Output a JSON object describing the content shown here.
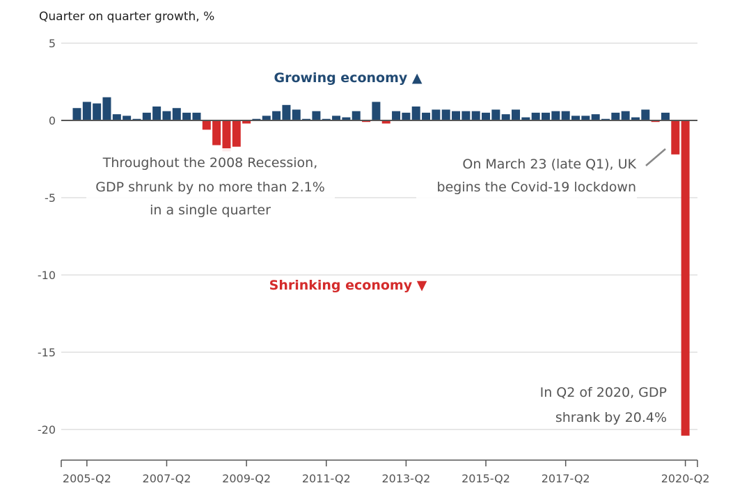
{
  "chart_data": {
    "type": "bar",
    "title": "",
    "ylabel": "Quarter on quarter growth, %",
    "xlabel": "",
    "ylim": [
      -21,
      5
    ],
    "yticks": [
      5,
      0,
      -5,
      -10,
      -15,
      -20
    ],
    "grid": true,
    "categories": [
      "2005-Q1",
      "2005-Q2",
      "2005-Q3",
      "2005-Q4",
      "2006-Q1",
      "2006-Q2",
      "2006-Q3",
      "2006-Q4",
      "2007-Q1",
      "2007-Q2",
      "2007-Q3",
      "2007-Q4",
      "2008-Q1",
      "2008-Q2",
      "2008-Q3",
      "2008-Q4",
      "2009-Q1",
      "2009-Q2",
      "2009-Q3",
      "2009-Q4",
      "2010-Q1",
      "2010-Q2",
      "2010-Q3",
      "2010-Q4",
      "2011-Q1",
      "2011-Q2",
      "2011-Q3",
      "2011-Q4",
      "2012-Q1",
      "2012-Q2",
      "2012-Q3",
      "2012-Q4",
      "2013-Q1",
      "2013-Q2",
      "2013-Q3",
      "2013-Q4",
      "2014-Q1",
      "2014-Q2",
      "2014-Q3",
      "2014-Q4",
      "2015-Q1",
      "2015-Q2",
      "2015-Q3",
      "2015-Q4",
      "2016-Q1",
      "2016-Q2",
      "2016-Q3",
      "2016-Q4",
      "2017-Q1",
      "2017-Q2",
      "2017-Q3",
      "2017-Q4",
      "2018-Q1",
      "2018-Q2",
      "2018-Q3",
      "2018-Q4",
      "2019-Q1",
      "2019-Q2",
      "2019-Q3",
      "2019-Q4",
      "2020-Q1",
      "2020-Q2"
    ],
    "values": [
      0.8,
      1.2,
      1.1,
      1.5,
      0.4,
      0.3,
      0.1,
      0.5,
      0.9,
      0.6,
      0.8,
      0.5,
      0.5,
      -0.6,
      -1.6,
      -2.0,
      -1.7,
      -0.2,
      0.1,
      0.3,
      0.6,
      1.0,
      0.7,
      0.1,
      0.6,
      0.1,
      0.3,
      0.2,
      0.6,
      -0.1,
      1.2,
      -0.2,
      0.6,
      0.5,
      0.9,
      0.5,
      0.7,
      0.7,
      0.6,
      0.6,
      0.6,
      0.5,
      0.7,
      0.4,
      0.7,
      0.2,
      0.5,
      0.5,
      0.6,
      0.6,
      0.3,
      0.3,
      0.4,
      0.1,
      0.5,
      0.6,
      0.2,
      0.7,
      -0.1,
      0.5,
      -2.2,
      -20.4
    ],
    "xtick_labels": [
      "2005-Q2",
      "2007-Q2",
      "2009-Q2",
      "2011-Q2",
      "2013-Q2",
      "2015-Q2",
      "2017-Q2",
      "2020-Q2"
    ],
    "colors": {
      "positive": "#214a73",
      "negative": "#d42b2b"
    },
    "annotations": {
      "growing": "Growing economy ▲",
      "shrinking": "Shrinking economy ▼",
      "recession_line1": "Throughout the 2008 Recession,",
      "recession_line2": "GDP shrunk by no more than 2.1%",
      "recession_line3": "in a single quarter",
      "lockdown_line1": "On March 23 (late Q1), UK",
      "lockdown_line2": "begins the Covid-19 lockdown",
      "q2_line1": "In Q2 of 2020, GDP",
      "q2_line2": "shrank by 20.4%"
    }
  }
}
